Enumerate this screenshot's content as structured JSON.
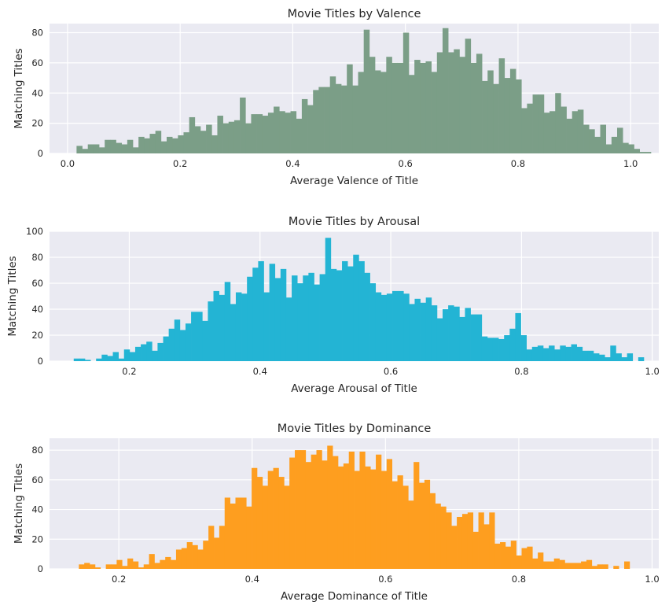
{
  "chart_data": [
    {
      "type": "bar",
      "title": "Movie Titles by Valence",
      "xlabel": "Average Valence of Title",
      "ylabel": "Matching Titles",
      "color": "#7b9e87",
      "xlim": [
        -0.032,
        1.05
      ],
      "ylim": [
        0,
        86
      ],
      "xticks": [
        0.0,
        0.2,
        0.4,
        0.6,
        0.8,
        1.0
      ],
      "xtick_labels": [
        "0.0",
        "0.2",
        "0.4",
        "0.6",
        "0.8",
        "1.0"
      ],
      "yticks": [
        0,
        20,
        40,
        60,
        80
      ],
      "ytick_labels": [
        "0",
        "20",
        "40",
        "60",
        "80"
      ],
      "bin_start": 0.016,
      "bin_width": 0.01,
      "values": [
        5,
        3,
        6,
        6,
        4,
        9,
        9,
        7,
        6,
        9,
        4,
        11,
        10,
        13,
        15,
        8,
        11,
        10,
        12,
        14,
        24,
        18,
        15,
        19,
        12,
        25,
        20,
        21,
        22,
        37,
        20,
        26,
        26,
        25,
        27,
        31,
        28,
        27,
        28,
        23,
        36,
        32,
        42,
        44,
        44,
        51,
        46,
        45,
        59,
        45,
        54,
        82,
        64,
        55,
        54,
        64,
        60,
        60,
        80,
        52,
        62,
        60,
        61,
        54,
        67,
        83,
        67,
        69,
        64,
        76,
        60,
        66,
        48,
        55,
        46,
        63,
        50,
        56,
        49,
        30,
        33,
        39,
        39,
        27,
        28,
        40,
        31,
        23,
        28,
        29,
        19,
        16,
        11,
        19,
        6,
        11,
        17,
        7,
        6,
        3,
        1,
        1
      ]
    },
    {
      "type": "bar",
      "title": "Movie Titles by Arousal",
      "xlabel": "Average Arousal of Title",
      "ylabel": "Matching Titles",
      "color": "#23b4d4",
      "xlim": [
        0.078,
        1.01
      ],
      "ylim": [
        0,
        100
      ],
      "xticks": [
        0.2,
        0.4,
        0.6,
        0.8,
        1.0
      ],
      "xtick_labels": [
        "0.2",
        "0.4",
        "0.6",
        "0.8",
        "1.0"
      ],
      "yticks": [
        0,
        20,
        40,
        60,
        80,
        100
      ],
      "ytick_labels": [
        "0",
        "20",
        "40",
        "60",
        "80",
        "100"
      ],
      "bin_start": 0.115,
      "bin_width": 0.00855,
      "values": [
        2,
        2,
        1,
        0,
        2,
        5,
        4,
        7,
        2,
        9,
        7,
        11,
        13,
        15,
        8,
        14,
        19,
        25,
        32,
        24,
        29,
        38,
        38,
        31,
        46,
        54,
        51,
        61,
        44,
        53,
        52,
        65,
        72,
        77,
        53,
        75,
        64,
        71,
        49,
        66,
        60,
        66,
        68,
        59,
        67,
        95,
        71,
        70,
        77,
        73,
        82,
        77,
        68,
        60,
        53,
        51,
        52,
        54,
        54,
        52,
        44,
        48,
        45,
        49,
        43,
        33,
        40,
        43,
        42,
        34,
        41,
        36,
        36,
        19,
        18,
        18,
        17,
        20,
        25,
        37,
        20,
        9,
        11,
        12,
        10,
        12,
        9,
        12,
        11,
        13,
        11,
        8,
        8,
        6,
        5,
        3,
        12,
        6,
        3,
        6,
        0,
        3
      ]
    },
    {
      "type": "bar",
      "title": "Movie Titles by Dominance",
      "xlabel": "Average Dominance of Title",
      "ylabel": "Matching Titles",
      "color": "#fe9e1f",
      "xlim": [
        0.096,
        1.01
      ],
      "ylim": [
        0,
        88
      ],
      "xticks": [
        0.2,
        0.4,
        0.6,
        0.8,
        1.0
      ],
      "xtick_labels": [
        "0.2",
        "0.4",
        "0.6",
        "0.8",
        "1.0"
      ],
      "yticks": [
        0,
        20,
        40,
        60,
        80
      ],
      "ytick_labels": [
        "0",
        "20",
        "40",
        "60",
        "80"
      ],
      "bin_start": 0.14,
      "bin_width": 0.0081,
      "values": [
        3,
        4,
        3,
        1,
        0,
        3,
        3,
        6,
        2,
        7,
        5,
        1,
        3,
        10,
        4,
        6,
        8,
        6,
        13,
        14,
        18,
        16,
        13,
        19,
        29,
        21,
        29,
        48,
        44,
        48,
        48,
        42,
        68,
        62,
        56,
        66,
        68,
        62,
        56,
        75,
        80,
        80,
        72,
        77,
        80,
        73,
        83,
        76,
        69,
        71,
        79,
        66,
        79,
        69,
        67,
        77,
        66,
        74,
        59,
        63,
        56,
        46,
        72,
        58,
        60,
        51,
        44,
        42,
        38,
        29,
        35,
        37,
        38,
        25,
        38,
        30,
        38,
        17,
        18,
        15,
        19,
        9,
        14,
        15,
        7,
        11,
        5,
        5,
        7,
        6,
        4,
        4,
        4,
        5,
        6,
        2,
        3,
        3,
        0,
        2,
        0,
        5
      ]
    }
  ]
}
